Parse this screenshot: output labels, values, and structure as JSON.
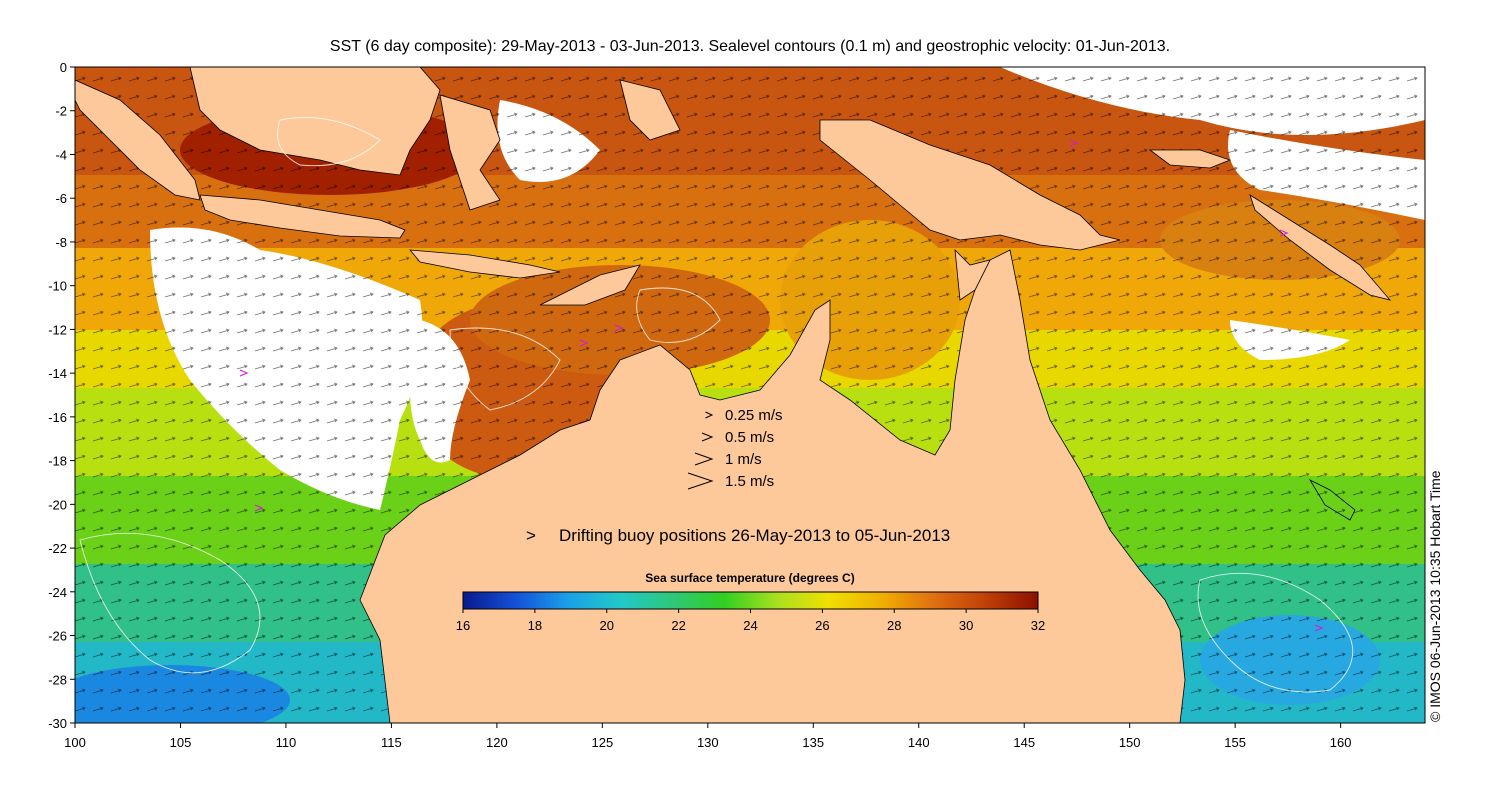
{
  "title": "SST (6 day composite): 29-May-2013 - 03-Jun-2013. Sealevel contours (0.1 m) and geostrophic velocity: 01-Jun-2013.",
  "credit": "© IMOS 06-Jun-2013 10:35 Hobart Time",
  "velocity_legend": [
    {
      "label": "0.25 m/s",
      "speed": 0.25
    },
    {
      "label": "0.5 m/s",
      "speed": 0.5
    },
    {
      "label": "1 m/s",
      "speed": 1
    },
    {
      "label": "1.5 m/s",
      "speed": 1.5
    }
  ],
  "buoy_legend": {
    "symbol": ">",
    "label": "Drifting buoy positions 26-May-2013 to 05-Jun-2013",
    "color": "#d020d0"
  },
  "colorbar": {
    "title": "Sea surface temperature (degrees C)",
    "ticks": [
      "16",
      "18",
      "20",
      "22",
      "24",
      "26",
      "28",
      "30",
      "32"
    ],
    "min": 16,
    "max": 32,
    "colors": [
      "#0a1a8c",
      "#1450d8",
      "#1aa0e8",
      "#22c8c8",
      "#2ec87a",
      "#30d020",
      "#a8e020",
      "#f0e000",
      "#f0b000",
      "#e07010",
      "#c04008",
      "#8c1000"
    ]
  },
  "axes": {
    "lon_min": 100,
    "lon_max": 164,
    "lat_min": -30,
    "lat_max": 0,
    "lon_ticks": [
      "100",
      "105",
      "110",
      "115",
      "120",
      "125",
      "130",
      "135",
      "140",
      "145",
      "150",
      "155",
      "160"
    ],
    "lat_ticks": [
      "0",
      "-2",
      "-4",
      "-6",
      "-8",
      "-10",
      "-12",
      "-14",
      "-16",
      "-18",
      "-20",
      "-22",
      "-24",
      "-26",
      "-28",
      "-30"
    ]
  },
  "colors": {
    "land": "#fdc89a",
    "cloud": "#ffffff"
  }
}
